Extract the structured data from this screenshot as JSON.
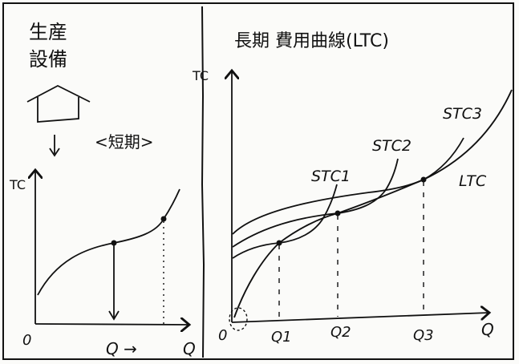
{
  "left_panel": {
    "heading_line1": "生産",
    "heading_line2": "設備",
    "subtitle": "<短期>",
    "y_axis_label": "TC",
    "origin_label": "0",
    "x_axis_label": "Q",
    "bottom_label": "Q →",
    "icons": [
      "house-icon",
      "down-arrow-icon"
    ]
  },
  "right_panel": {
    "title": "長期 費用曲線(LTC)",
    "y_axis_label": "TC",
    "origin_label": "0",
    "x_axis_label": "Q",
    "x_ticks": [
      "Q1",
      "Q2",
      "Q3"
    ],
    "curve_labels": {
      "stc1": "STC1",
      "stc2": "STC2",
      "stc3": "STC3",
      "ltc": "LTC"
    }
  },
  "colors": {
    "ink": "#111111",
    "paper": "#fbfbf9"
  }
}
